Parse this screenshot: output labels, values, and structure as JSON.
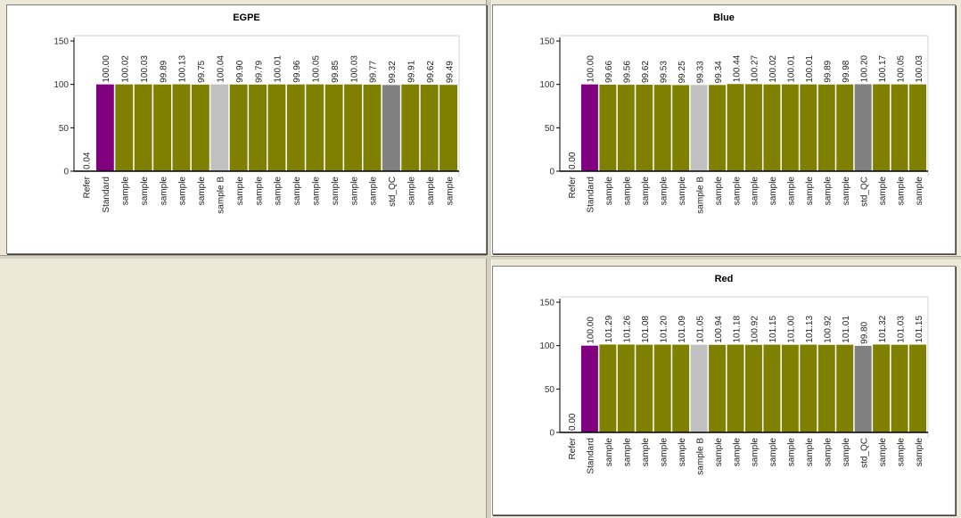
{
  "chart_data": [
    {
      "type": "bar",
      "title": "EGPE",
      "categories": [
        "Refer",
        "Standard",
        "sample",
        "sample",
        "sample",
        "sample",
        "sample",
        "sample B",
        "sample",
        "sample",
        "sample",
        "sample",
        "sample",
        "sample",
        "sample",
        "sample",
        "std_QC",
        "sample",
        "sample",
        "sample"
      ],
      "values": [
        0.04,
        100.0,
        100.02,
        100.03,
        99.89,
        100.13,
        99.75,
        100.04,
        99.9,
        99.79,
        100.01,
        99.96,
        100.05,
        99.85,
        100.03,
        99.77,
        99.32,
        99.91,
        99.62,
        99.49
      ],
      "labels": [
        "0.04",
        "100.00",
        "100.02",
        "100.03",
        "99.89",
        "100.13",
        "99.75",
        "100.04",
        "99.90",
        "99.79",
        "100.01",
        "99.96",
        "100.05",
        "99.85",
        "100.03",
        "99.77",
        "99.32",
        "99.91",
        "99.62",
        "99.49"
      ],
      "ylim": [
        0,
        150
      ],
      "yticks": [
        "0",
        "50",
        "100",
        "150"
      ],
      "colors": [
        "#800080",
        "#800080",
        "#808000",
        "#808000",
        "#808000",
        "#808000",
        "#808000",
        "#c0c0c0",
        "#808000",
        "#808000",
        "#808000",
        "#808000",
        "#808000",
        "#808000",
        "#808000",
        "#808000",
        "#808080",
        "#808000",
        "#808000",
        "#808000"
      ]
    },
    {
      "type": "bar",
      "title": "Blue",
      "categories": [
        "Refer",
        "Standard",
        "sample",
        "sample",
        "sample",
        "sample",
        "sample",
        "sample B",
        "sample",
        "sample",
        "sample",
        "sample",
        "sample",
        "sample",
        "sample",
        "sample",
        "std_QC",
        "sample",
        "sample",
        "sample"
      ],
      "values": [
        0.0,
        100.0,
        99.66,
        99.56,
        99.62,
        99.53,
        99.25,
        99.33,
        99.34,
        100.44,
        100.27,
        100.02,
        100.01,
        100.01,
        99.89,
        99.98,
        100.2,
        100.17,
        100.05,
        100.03
      ],
      "labels": [
        "0.00",
        "100.00",
        "99.66",
        "99.56",
        "99.62",
        "99.53",
        "99.25",
        "99.33",
        "99.34",
        "100.44",
        "100.27",
        "100.02",
        "100.01",
        "100.01",
        "99.89",
        "99.98",
        "100.20",
        "100.17",
        "100.05",
        "100.03"
      ],
      "ylim": [
        0,
        150
      ],
      "yticks": [
        "0",
        "50",
        "100",
        "150"
      ],
      "colors": [
        "#800080",
        "#800080",
        "#808000",
        "#808000",
        "#808000",
        "#808000",
        "#808000",
        "#c0c0c0",
        "#808000",
        "#808000",
        "#808000",
        "#808000",
        "#808000",
        "#808000",
        "#808000",
        "#808000",
        "#808080",
        "#808000",
        "#808000",
        "#808000"
      ]
    },
    {
      "type": "bar",
      "title": "Red",
      "categories": [
        "Refer",
        "Standard",
        "sample",
        "sample",
        "sample",
        "sample",
        "sample",
        "sample B",
        "sample",
        "sample",
        "sample",
        "sample",
        "sample",
        "sample",
        "sample",
        "sample",
        "std_QC",
        "sample",
        "sample",
        "sample"
      ],
      "values": [
        0.0,
        100.0,
        101.29,
        101.26,
        101.08,
        101.2,
        101.09,
        101.05,
        100.94,
        101.18,
        100.92,
        101.15,
        101.0,
        101.13,
        100.92,
        101.01,
        99.8,
        101.32,
        101.03,
        101.15
      ],
      "labels": [
        "0.00",
        "100.00",
        "101.29",
        "101.26",
        "101.08",
        "101.20",
        "101.09",
        "101.05",
        "100.94",
        "101.18",
        "100.92",
        "101.15",
        "101.00",
        "101.13",
        "100.92",
        "101.01",
        "99.80",
        "101.32",
        "101.03",
        "101.15"
      ],
      "ylim": [
        0,
        150
      ],
      "yticks": [
        "0",
        "50",
        "100",
        "150"
      ],
      "colors": [
        "#800080",
        "#800080",
        "#808000",
        "#808000",
        "#808000",
        "#808000",
        "#808000",
        "#c0c0c0",
        "#808000",
        "#808000",
        "#808000",
        "#808000",
        "#808000",
        "#808000",
        "#808000",
        "#808000",
        "#808080",
        "#808000",
        "#808000",
        "#808000"
      ]
    }
  ]
}
